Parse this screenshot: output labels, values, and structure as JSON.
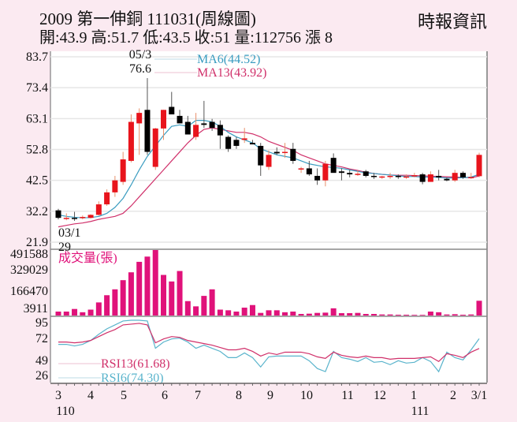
{
  "header": {
    "title": "2009  第一伸銅 111031(周線圖)",
    "ohlc": "開:43.9 高:51.7 低:43.5 收:51 量:112756 漲 8",
    "source": "時報資訊"
  },
  "price_panel": {
    "y_ticks": [
      "83.7",
      "73.4",
      "63.1",
      "52.8",
      "42.5",
      "32.2",
      "21.9"
    ],
    "high_annotation": {
      "date": "05/3",
      "value": "76.6"
    },
    "low_annotation": {
      "date": "03/1",
      "value": "29"
    },
    "legend": {
      "ma6": "MA6(44.52)",
      "ma13": "MA13(43.92)"
    }
  },
  "volume_panel": {
    "label": "成交量(張)",
    "y_ticks": [
      "491588",
      "329029",
      "166470",
      "3911"
    ]
  },
  "rsi_panel": {
    "y_ticks": [
      "95",
      "72",
      "49",
      "26"
    ],
    "legend": {
      "rsi13": "RSI13(61.68)",
      "rsi6": "RSI6(74.30)"
    }
  },
  "x_axis": {
    "labels": [
      "3",
      "4",
      "5",
      "6",
      "7",
      "8",
      "9",
      "10",
      "11",
      "12",
      "1",
      "2",
      "3/1"
    ],
    "year_labels": [
      "110",
      "111"
    ]
  },
  "colors": {
    "up": "#e8141c",
    "down": "#000000",
    "ma6": "#3a9cc0",
    "ma13": "#d0306a",
    "volume": "#e0127a",
    "rsi13": "#d0306a",
    "rsi6": "#5ab4cc",
    "background": "#fbeaf1"
  },
  "chart_data": [
    {
      "type": "candlestick",
      "title": "2009 第一伸銅 111031(周線圖)",
      "ylim": [
        21.9,
        83.7
      ],
      "ohlc": [
        [
          32.5,
          33,
          29.5,
          30
        ],
        [
          30,
          31.5,
          29.2,
          30
        ],
        [
          30,
          32,
          29,
          29.8
        ],
        [
          30,
          30.8,
          29.5,
          30.3
        ],
        [
          30,
          31.2,
          29.8,
          31
        ],
        [
          31,
          35.5,
          30.8,
          34.5
        ],
        [
          34.5,
          39.5,
          34,
          38.5
        ],
        [
          38.5,
          44,
          37,
          42.5
        ],
        [
          42,
          52,
          41,
          49.5
        ],
        [
          49,
          64.5,
          48.5,
          62
        ],
        [
          61.5,
          66.5,
          51,
          65
        ],
        [
          66,
          76.6,
          51,
          52
        ],
        [
          47,
          60,
          46,
          59.8
        ],
        [
          59.8,
          66,
          56,
          66
        ],
        [
          67,
          72,
          65,
          64.5
        ],
        [
          64,
          66,
          62,
          61.5
        ],
        [
          62,
          64,
          57.8,
          57.8
        ],
        [
          57,
          65,
          56,
          61
        ],
        [
          61.5,
          69,
          60,
          61
        ],
        [
          62,
          63,
          59,
          60
        ],
        [
          61,
          62.5,
          53,
          57.5
        ],
        [
          57,
          57.5,
          52,
          53
        ],
        [
          56,
          57,
          53,
          54
        ],
        [
          56,
          60,
          55,
          56.5
        ],
        [
          55,
          56,
          54.5,
          54.5
        ],
        [
          54,
          55,
          44,
          47.5
        ],
        [
          47,
          52.5,
          46,
          51
        ],
        [
          52,
          53.5,
          51,
          51.5
        ],
        [
          52,
          55,
          50,
          52
        ],
        [
          53,
          55,
          48,
          49
        ],
        [
          46.5,
          47,
          45,
          46.5
        ],
        [
          46.5,
          49,
          44,
          44.5
        ],
        [
          44,
          46.5,
          41,
          42.5
        ],
        [
          42.5,
          49,
          40.5,
          48
        ],
        [
          50,
          51.5,
          46,
          45
        ],
        [
          45.5,
          46.5,
          42.5,
          45
        ],
        [
          45,
          46,
          43.5,
          44.5
        ],
        [
          44.5,
          45.8,
          44,
          44.7
        ],
        [
          45.5,
          46,
          43.5,
          44
        ],
        [
          44,
          45,
          43,
          43.8
        ],
        [
          43.8,
          44,
          43,
          43.8
        ],
        [
          43.8,
          45,
          43,
          44
        ],
        [
          44,
          44.5,
          43,
          43.6
        ],
        [
          43.5,
          44.5,
          43,
          43.8
        ],
        [
          44,
          45,
          43.5,
          44.2
        ],
        [
          44.5,
          45,
          41.2,
          42
        ],
        [
          42,
          45.5,
          42,
          44.5
        ],
        [
          44,
          46,
          42.5,
          43.5
        ],
        [
          43,
          43.5,
          42.2,
          42.5
        ],
        [
          42.5,
          46,
          42,
          45
        ],
        [
          45,
          45.5,
          43,
          43.5
        ],
        [
          43.5,
          45,
          43,
          43.6
        ],
        [
          43.9,
          51.7,
          43.5,
          51
        ]
      ],
      "ma6": [
        31,
        30.5,
        30.2,
        30,
        30.1,
        30.5,
        31.5,
        33.5,
        36.5,
        41,
        46,
        50.5,
        54,
        57.5,
        60.5,
        61,
        60.5,
        62.5,
        62.5,
        62,
        60.5,
        58.5,
        57,
        56,
        55,
        53,
        52,
        51,
        50.5,
        50,
        49,
        48,
        47.5,
        47,
        46.8,
        46.5,
        46,
        45.5,
        45,
        44.8,
        44.5,
        44.3,
        44,
        43.8,
        43.8,
        43.6,
        43.6,
        43.5,
        43.3,
        43.3,
        43.4,
        43.6,
        44.52
      ],
      "ma13": [
        27,
        27.5,
        28,
        28.3,
        28.8,
        29.5,
        30,
        30.5,
        31.5,
        34,
        37,
        40,
        43,
        46,
        49,
        52,
        55,
        57.5,
        59.5,
        60,
        59.5,
        59,
        58.5,
        58.5,
        58,
        57,
        55.5,
        54.5,
        53.5,
        52.5,
        51,
        50,
        49,
        48,
        47.5,
        47,
        46.3,
        45.8,
        45.2,
        44.8,
        44.5,
        44.3,
        44.2,
        44.2,
        44.1,
        44,
        43.9,
        43.8,
        43.7,
        43.6,
        43.5,
        43.4,
        43.92
      ],
      "high_label": "05/3 76.6",
      "low_label": "03/1 29",
      "legend": [
        "MA6(44.52)",
        "MA13(43.92)"
      ]
    },
    {
      "type": "bar",
      "title": "成交量(張)",
      "ylim": [
        3911,
        491588
      ],
      "values": [
        30000,
        30000,
        50000,
        25000,
        45000,
        100000,
        155000,
        200000,
        270000,
        330000,
        410000,
        450000,
        500000,
        310000,
        260000,
        340000,
        110000,
        70000,
        150000,
        200000,
        45000,
        40000,
        30000,
        60000,
        80000,
        20000,
        40000,
        40000,
        25000,
        30000,
        12000,
        14000,
        20000,
        22000,
        55000,
        18000,
        18000,
        20000,
        12000,
        12000,
        8000,
        8000,
        6000,
        6000,
        5000,
        5000,
        30000,
        25000,
        8000,
        10000,
        6000,
        8000,
        112756
      ]
    },
    {
      "type": "line",
      "title": "RSI",
      "ylim": [
        26,
        95
      ],
      "series": [
        {
          "name": "RSI13(61.68)",
          "values": [
            70,
            70,
            69,
            70,
            72,
            77,
            82,
            86,
            92,
            93,
            94,
            92,
            69,
            74,
            77,
            76,
            72,
            70,
            68,
            66,
            63,
            60,
            60,
            62,
            58,
            52,
            56,
            54,
            57,
            57,
            57,
            55,
            51,
            49,
            57,
            53,
            51,
            50,
            52,
            50,
            50,
            48,
            49,
            49,
            49,
            50,
            51,
            45,
            55,
            53,
            50,
            57,
            61.68
          ]
        },
        {
          "name": "RSI6(74.30)",
          "values": [
            67,
            67,
            65,
            67,
            72,
            80,
            87,
            92,
            97,
            98,
            98,
            97,
            62,
            70,
            74,
            75,
            70,
            62,
            66,
            62,
            58,
            50,
            50,
            56,
            50,
            38,
            51,
            52,
            52,
            52,
            52,
            46,
            36,
            32,
            58,
            50,
            48,
            45,
            50,
            44,
            45,
            41,
            46,
            43,
            44,
            50,
            45,
            32,
            57,
            50,
            47,
            60,
            74.3
          ]
        }
      ]
    }
  ]
}
